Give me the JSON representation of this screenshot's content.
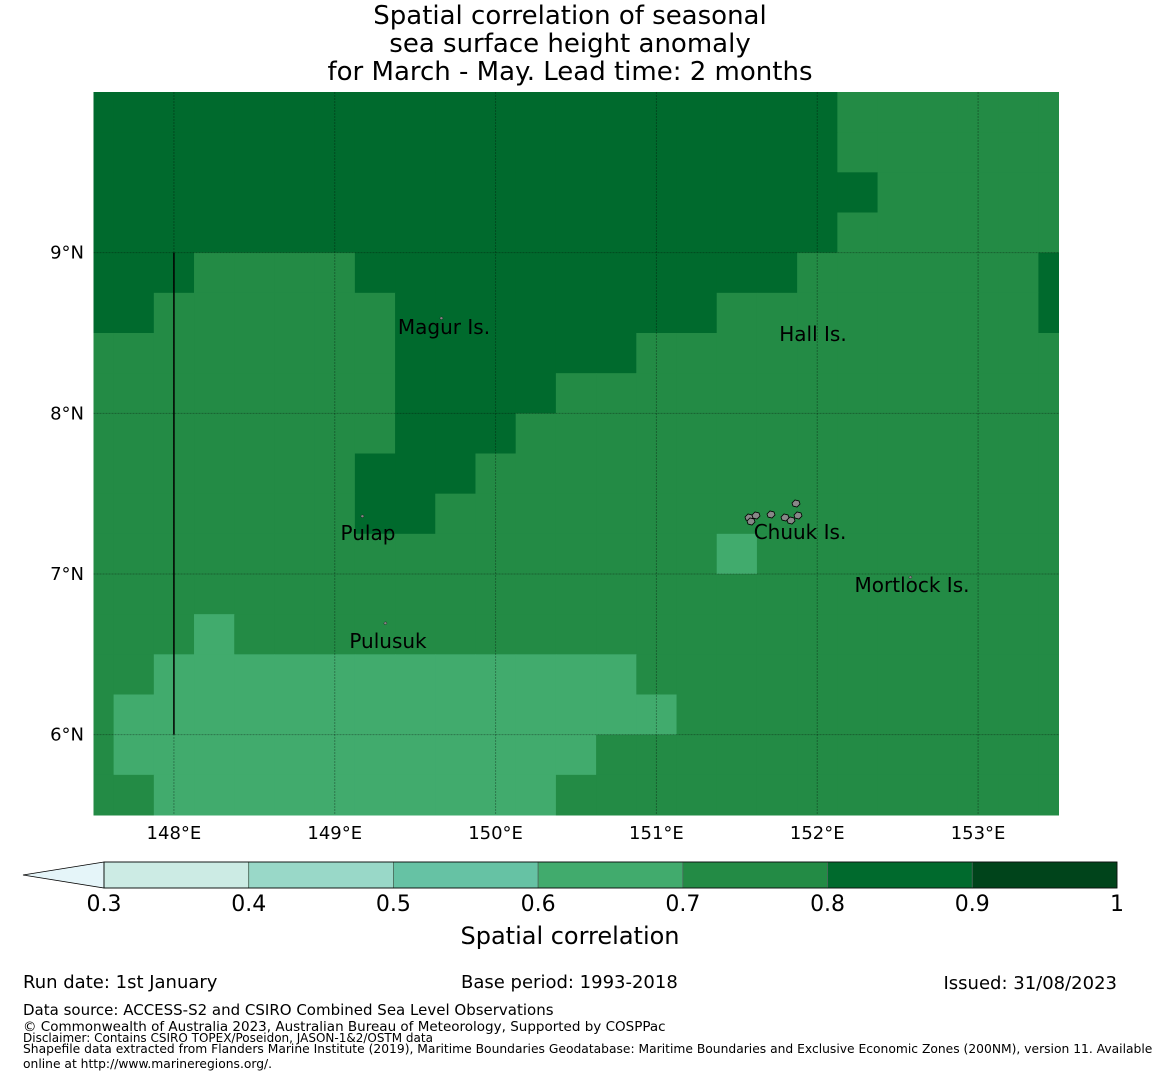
{
  "title": [
    "Spatial correlation of seasonal",
    "sea surface height anomaly",
    "for March - May. Lead time: 2 months"
  ],
  "chart_data": {
    "type": "heatmap",
    "lon_range": [
      147.5,
      153.5
    ],
    "lat_range": [
      5.5,
      10.0
    ],
    "cell_size_deg": 0.25,
    "classes": {
      "l": "0.6-0.7",
      "m": "0.7-0.8",
      "d": "0.8-0.9"
    },
    "class_colors": {
      "l": "#41ab6d",
      "m": "#238b45",
      "d": "#006a2d"
    },
    "grid_rows_north_to_south": [
      "dddddddddddddddddddmmmmmm",
      "dddddddddddddddddddmmmmmm",
      "ddddddddddddddddddddmmmmm",
      "dddddddddddddddddddmmmmmm",
      "dddmmmmdddddddddddmmmmmmd",
      "ddmmmmmmddddddddmmmmmmmmd",
      "mmmmmmmmddddddmmmmmmmmmmm",
      "mmmmmmmmddddmmmmmmmmmmmmm",
      "mmmmmmmmdddmmmmmmmmmmmmmm",
      "mmmmmmmdddmmmmmmmmmmmmmmm",
      "mmmmmmmddmmmmmmmmmmmmmmmm",
      "mmmmmmmmmmmmmmmmlmmmmmmmm",
      "mmmmmmmmmmmmmmmmmmmmmmmmm",
      "mmmlmmmmmmmmmmmmmmmmmmmmm",
      "mmllllllllllllmmmmmmmmmmm",
      "mllllllllllllllmmmmmmmmmm",
      "mllllllllllllmmmmmmmmmmmm",
      "mmllllllllllmmmmmmmmmmmmm"
    ],
    "xticks": [
      148,
      149,
      150,
      151,
      152,
      153
    ],
    "xtick_labels": [
      "148°E",
      "149°E",
      "150°E",
      "151°E",
      "152°E",
      "153°E"
    ],
    "yticks": [
      9,
      8,
      7,
      6
    ],
    "ytick_labels": [
      "9°N",
      "8°N",
      "7°N",
      "6°N"
    ],
    "places": [
      {
        "name": "Magur Is.",
        "lon": 149.65,
        "lat": 8.6
      },
      {
        "name": "Hall Is.",
        "lon": 151.75,
        "lat": 8.5
      },
      {
        "name": "Pulap",
        "lon": 149.2,
        "lat": 7.35
      },
      {
        "name": "Chuuk Is.",
        "lon": 151.8,
        "lat": 7.4
      },
      {
        "name": "Mortlock Is.",
        "lon": 152.6,
        "lat": 6.98
      },
      {
        "name": "Pulusuk",
        "lon": 149.3,
        "lat": 6.68
      }
    ],
    "boundary_line": {
      "lon": 148.0,
      "lat": [
        6.0,
        9.0
      ]
    },
    "colorbar": {
      "ticks": [
        "0.3",
        "0.4",
        "0.5",
        "0.6",
        "0.7",
        "0.8",
        "0.9",
        "1"
      ],
      "colors": [
        "#ccebe4",
        "#99d8c8",
        "#66c2a4",
        "#41ab6d",
        "#238b45",
        "#006a2d",
        "#00441b"
      ],
      "extend_color": "#e5f5f9",
      "extend": "min",
      "label": "Spatial correlation"
    }
  },
  "footer": {
    "run_date": "Run date: 1st January",
    "base_period": "Base period: 1993-2018",
    "issued": "Issued: 31/08/2023",
    "data_source": "Data source: ACCESS-S2 and CSIRO Combined Sea Level Observations",
    "copyright": "© Commonwealth of Australia 2023, Australian Bureau of Meteorology, Supported by COSPPac",
    "disclaimer": "Disclaimer: Contains CSIRO TOPEX/Poseidon, JASON-1&2/OSTM data",
    "shapefile": "Shapefile data extracted from Flanders Marine Institute (2019), Maritime Boundaries Geodatabase: Maritime Boundaries and Exclusive Economic Zones (200NM), version 11. Available",
    "shapefile2": "online at http://www.marineregions.org/."
  }
}
